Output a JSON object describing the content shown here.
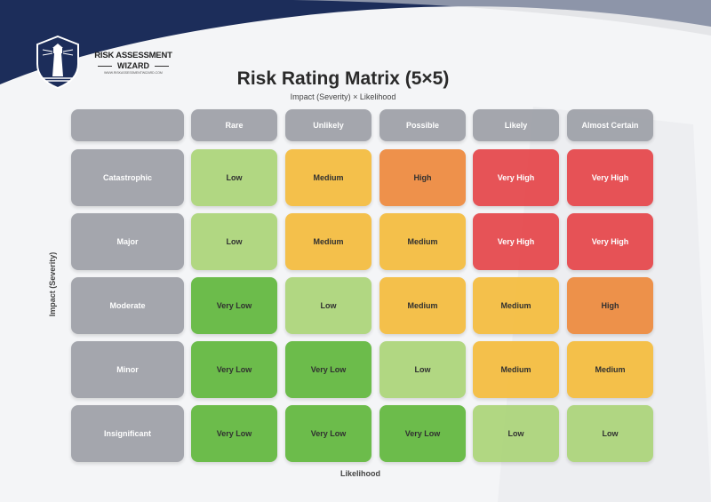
{
  "brand": {
    "line1": "RISK ASSESSMENT",
    "line2": "WIZARD",
    "url": "WWW.RISKASSESSMENTWIZARD.COM"
  },
  "title": "Risk Rating Matrix (5×5)",
  "subtitle": "Impact (Severity) × Likelihood",
  "y_axis_label": "Impact (Severity)",
  "x_axis_label": "Likelihood",
  "columns": [
    "Rare",
    "Unlikely",
    "Possible",
    "Likely",
    "Almost Certain"
  ],
  "rows": [
    {
      "label": "Catastrophic",
      "cells": [
        "Low",
        "Medium",
        "High",
        "Very High",
        "Very High"
      ]
    },
    {
      "label": "Major",
      "cells": [
        "Low",
        "Medium",
        "Medium",
        "Very High",
        "Very High"
      ]
    },
    {
      "label": "Moderate",
      "cells": [
        "Very Low",
        "Low",
        "Medium",
        "Medium",
        "High"
      ]
    },
    {
      "label": "Minor",
      "cells": [
        "Very Low",
        "Very Low",
        "Low",
        "Medium",
        "Medium"
      ]
    },
    {
      "label": "Insignificant",
      "cells": [
        "Very Low",
        "Very Low",
        "Very Low",
        "Low",
        "Low"
      ]
    }
  ],
  "colors": {
    "Very Low": "#62b83e",
    "Low": "#acd57a",
    "Medium": "#f5bd3e",
    "High": "#ee8a3e",
    "Very High": "#e6474b",
    "header": "#9ea1a8",
    "navy": "#1c2d5a"
  }
}
